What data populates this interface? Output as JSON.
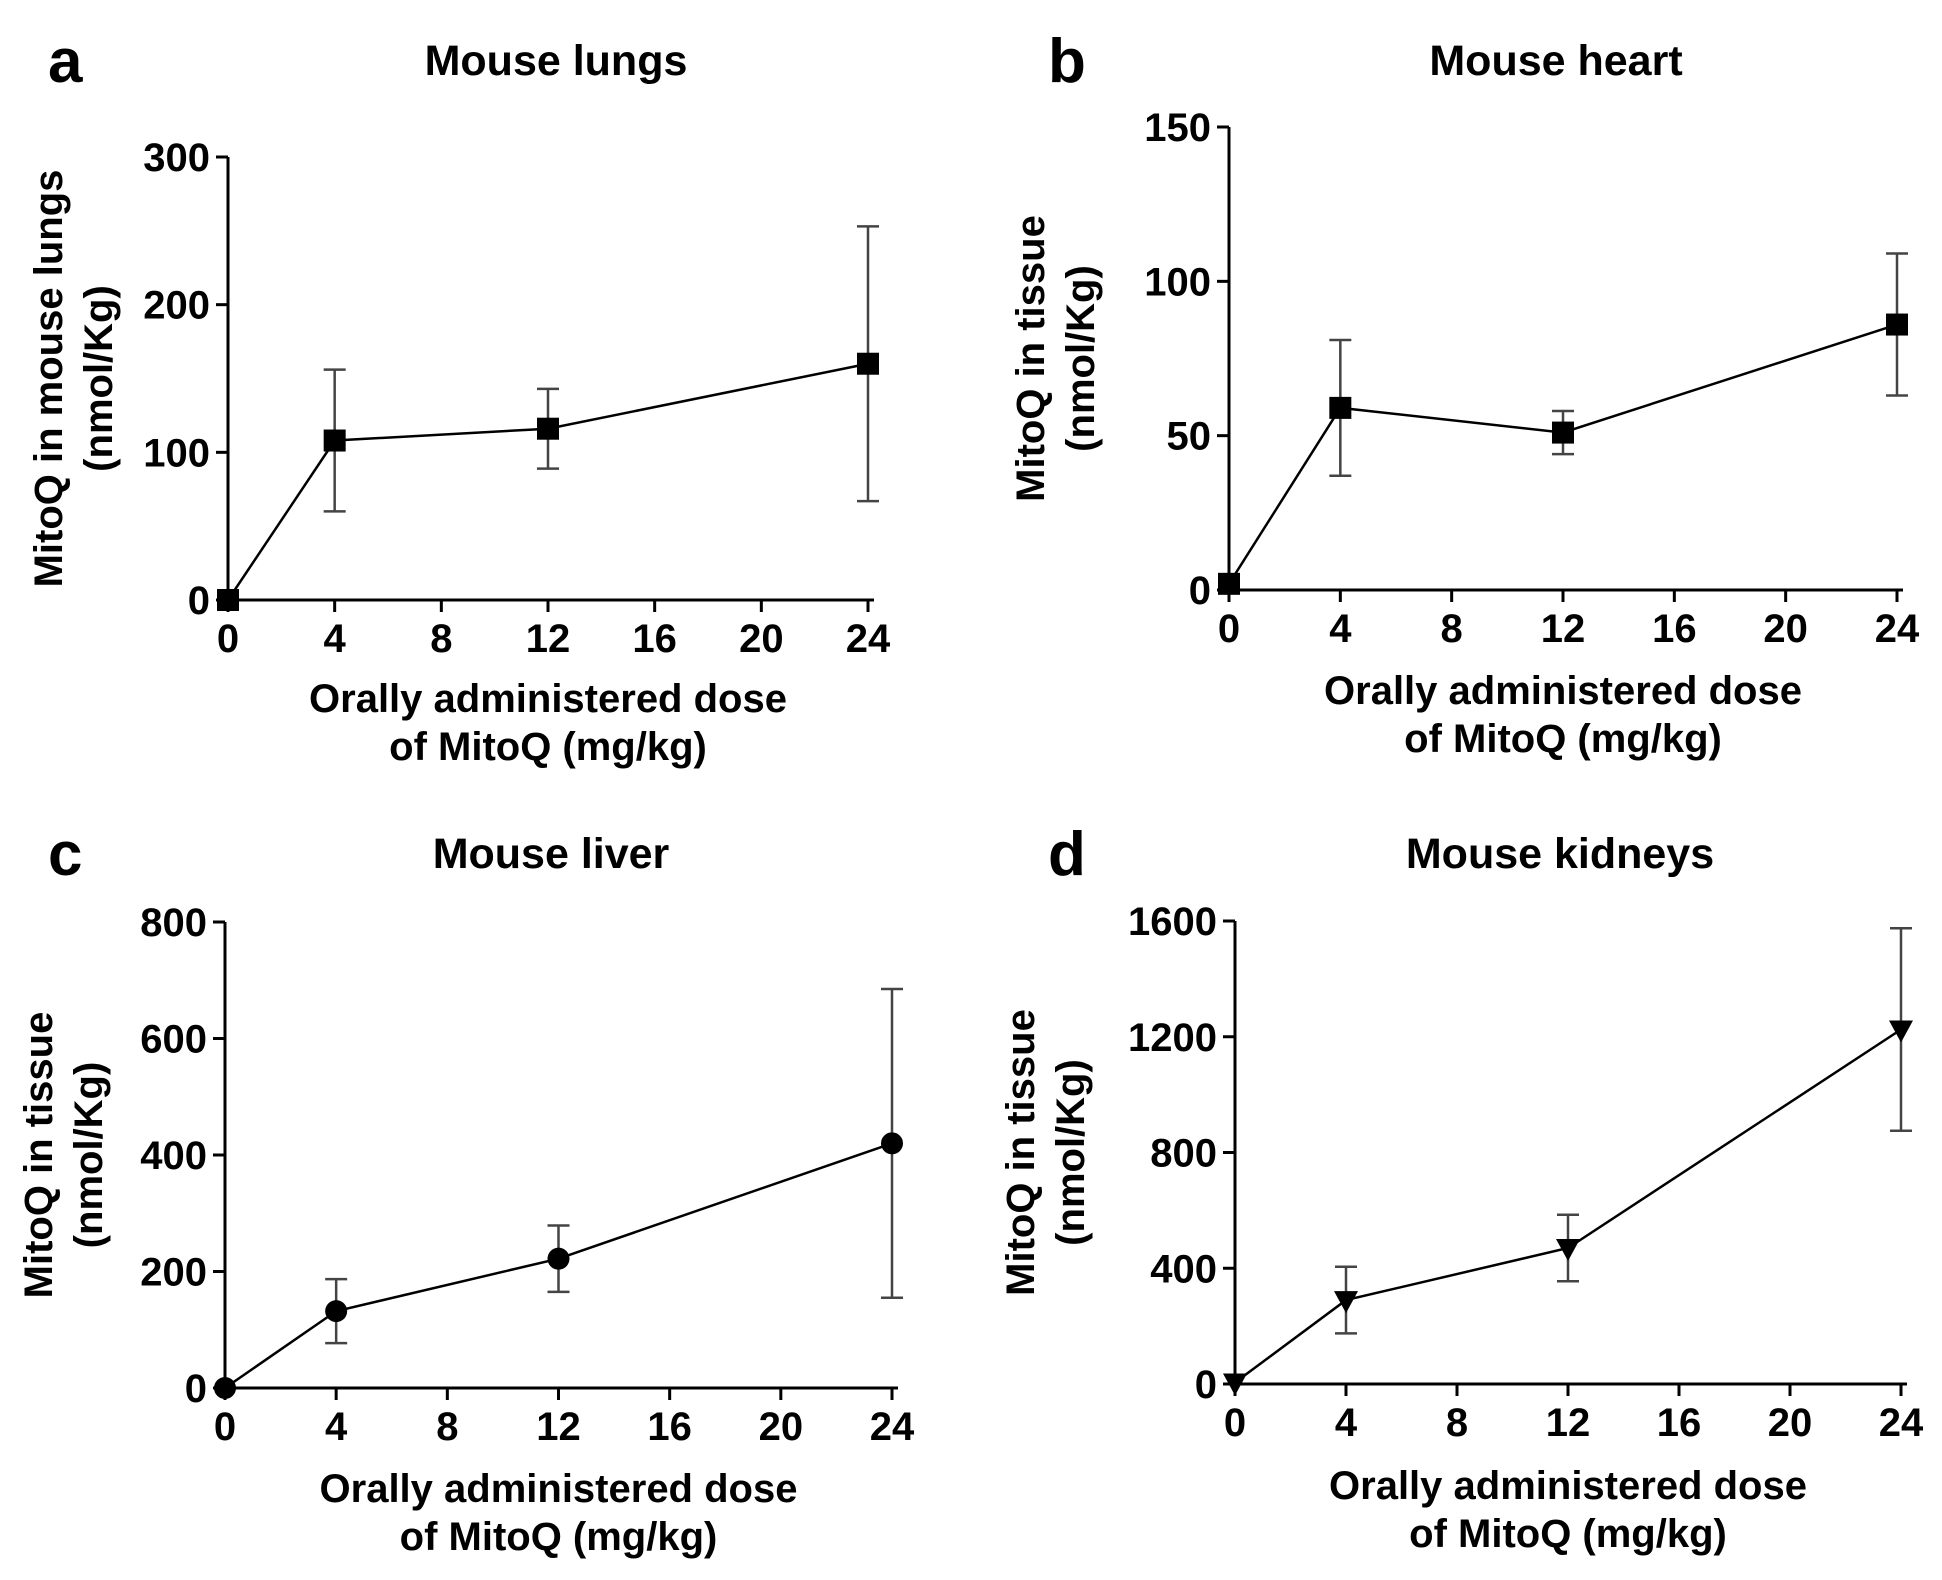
{
  "chart_data": [
    {
      "panel": "a",
      "type": "line",
      "title": "Mouse lungs",
      "xlabel": [
        "Orally administered dose",
        "of MitoQ (mg/kg)"
      ],
      "ylabel": [
        "MitoQ in mouse lungs",
        "(nmol/Kg)"
      ],
      "xlim": [
        0,
        24
      ],
      "xticks": [
        0,
        4,
        8,
        12,
        16,
        20,
        24
      ],
      "ylim": [
        0,
        300
      ],
      "yticks": [
        0,
        100,
        200,
        300
      ],
      "marker": "square",
      "grid": false,
      "x": [
        0,
        4,
        12,
        24
      ],
      "y": [
        0,
        108,
        116,
        160
      ],
      "error": [
        0,
        48,
        27,
        93
      ]
    },
    {
      "panel": "b",
      "type": "line",
      "title": "Mouse heart",
      "xlabel": [
        "Orally administered dose",
        "of MitoQ (mg/kg)"
      ],
      "ylabel": [
        "MitoQ in tissue",
        "(nmol/Kg)"
      ],
      "xlim": [
        0,
        24
      ],
      "xticks": [
        0,
        4,
        8,
        12,
        16,
        20,
        24
      ],
      "ylim": [
        0,
        150
      ],
      "yticks": [
        0,
        50,
        100,
        150
      ],
      "marker": "square",
      "grid": false,
      "x": [
        0,
        4,
        12,
        24
      ],
      "y": [
        2,
        59,
        51,
        86
      ],
      "error": [
        0,
        22,
        7,
        23
      ]
    },
    {
      "panel": "c",
      "type": "line",
      "title": "Mouse liver",
      "xlabel": [
        "Orally administered dose",
        "of MitoQ (mg/kg)"
      ],
      "ylabel": [
        "MitoQ in tissue",
        "(nmol/Kg)"
      ],
      "xlim": [
        0,
        24
      ],
      "xticks": [
        0,
        4,
        8,
        12,
        16,
        20,
        24
      ],
      "ylim": [
        0,
        800
      ],
      "yticks": [
        0,
        200,
        400,
        600,
        800
      ],
      "marker": "circle",
      "grid": false,
      "x": [
        0,
        4,
        12,
        24
      ],
      "y": [
        0,
        132,
        222,
        420
      ],
      "error": [
        0,
        55,
        57,
        265
      ]
    },
    {
      "panel": "d",
      "type": "line",
      "title": "Mouse kidneys",
      "xlabel": [
        "Orally administered dose",
        "of MitoQ (mg/kg)"
      ],
      "ylabel": [
        "MitoQ in tissue",
        "(nmol/Kg)"
      ],
      "xlim": [
        0,
        24
      ],
      "xticks": [
        0,
        4,
        8,
        12,
        16,
        20,
        24
      ],
      "ylim": [
        0,
        1600
      ],
      "yticks": [
        0,
        400,
        800,
        1200,
        1600
      ],
      "marker": "triangle-down",
      "grid": false,
      "x": [
        0,
        4,
        12,
        24
      ],
      "y": [
        5,
        290,
        470,
        1225
      ],
      "error": [
        0,
        115,
        115,
        350
      ]
    }
  ]
}
